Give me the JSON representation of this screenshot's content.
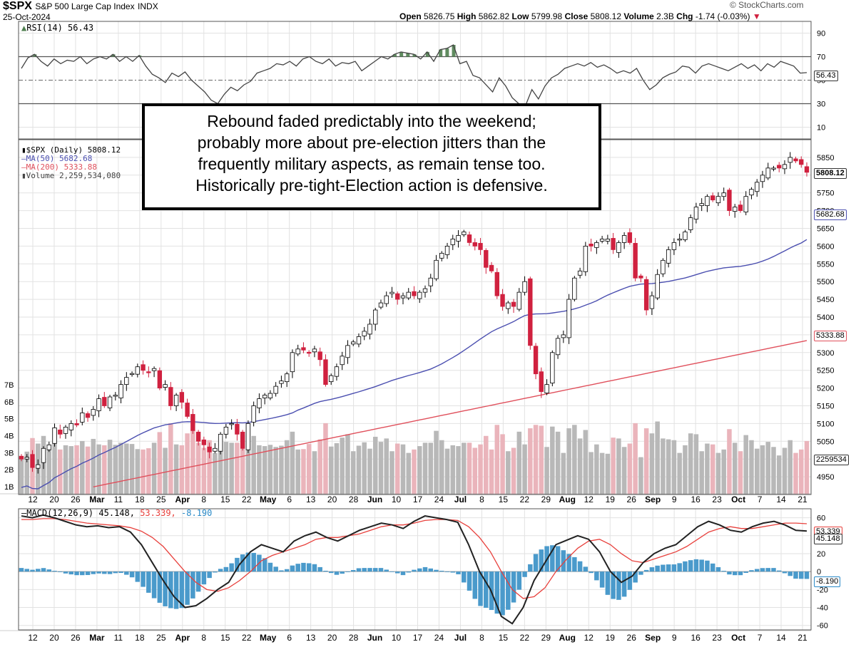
{
  "header": {
    "symbol": "$SPX",
    "name": "S&P 500 Large Cap Index",
    "exchange": "INDX",
    "date": "25-Oct-2024",
    "brand": "© StockCharts.com",
    "open_label": "Open",
    "open": "5826.75",
    "high_label": "High",
    "high": "5862.82",
    "low_label": "Low",
    "low": "5799.98",
    "close_label": "Close",
    "close": "5808.12",
    "volume_label": "Volume",
    "volume": "2.3B",
    "chg_label": "Chg",
    "chg": "-1.74 (-0.03%)"
  },
  "annotation": {
    "lines": [
      "Rebound faded predictably into the weekend;",
      "probably more about pre-election jitters than the",
      "frequently military aspects, as remain tense too.",
      "Historically pre-tight-Election action is defensive."
    ]
  },
  "legend": {
    "rsi": "RSI(14) 56.43",
    "price": "$SPX (Daily) 5808.12",
    "ma50": "MA(50) 5682.68",
    "ma200": "MA(200) 5333.88",
    "volume": "Volume 2,259,534,080",
    "macd_prefix": "MACD(12,26,9)",
    "macd_v1": "45.148,",
    "macd_v2": "53.339,",
    "macd_v3": "-8.190"
  },
  "last_values": {
    "rsi": "56.43",
    "price": "5808.12",
    "ma50": "5682.68",
    "ma200": "5333.88",
    "volume": "2259534",
    "macd": "45.148",
    "signal": "53.339",
    "hist": "-8.190"
  },
  "colors": {
    "up": "#ffffff",
    "down": "#d0213f",
    "ma50": "#4b4fb0",
    "ma200": "#e0505c",
    "vol_up": "#b8b8b8",
    "vol_down": "#eab4bb",
    "macd_hist": "#4a9acb",
    "rsi_fill": "#4f7f4f",
    "macd_line": "#222222",
    "signal_line": "#e8403c"
  },
  "chart_data": [
    {
      "type": "line",
      "title": "RSI(14) 56.43",
      "y_ticks": [
        90,
        70,
        50,
        30,
        10
      ],
      "ylim": [
        0,
        100
      ],
      "series": [
        {
          "name": "RSI(14)",
          "values": [
            60,
            69,
            72,
            66,
            62,
            68,
            64,
            67,
            66,
            70,
            64,
            68,
            70,
            68,
            72,
            66,
            70,
            66,
            71,
            62,
            55,
            52,
            48,
            56,
            53,
            57,
            50,
            45,
            40,
            33,
            30,
            38,
            44,
            41,
            46,
            49,
            56,
            58,
            60,
            64,
            63,
            66,
            62,
            68,
            70,
            66,
            64,
            68,
            62,
            65,
            64,
            66,
            58,
            62,
            66,
            70,
            68,
            72,
            74,
            73,
            72,
            68,
            74,
            66,
            76,
            77,
            80,
            64,
            66,
            54,
            52,
            46,
            40,
            52,
            45,
            35,
            30,
            28,
            42,
            34,
            45,
            52,
            55,
            60,
            62,
            64,
            62,
            65,
            61,
            63,
            60,
            56,
            58,
            56,
            60,
            50,
            42,
            46,
            52,
            55,
            57,
            62,
            61,
            56,
            62,
            64,
            62,
            60,
            58,
            61,
            64,
            60,
            63,
            58,
            64,
            61,
            66,
            64,
            62,
            56,
            56.43
          ]
        }
      ]
    },
    {
      "type": "candlestick",
      "title": "$SPX (Daily) 5808.12",
      "y_ticks": [
        5850,
        5800,
        5750,
        5700,
        5650,
        5600,
        5550,
        5500,
        5450,
        5400,
        5350,
        5300,
        5250,
        5200,
        5150,
        5100,
        5050,
        5000,
        4950
      ],
      "ylim": [
        4900,
        5900
      ],
      "x_tick_labels": [
        "12",
        "20",
        "26",
        "Mar",
        "11",
        "18",
        "25",
        "Apr",
        "8",
        "15",
        "22",
        "May",
        "6",
        "13",
        "20",
        "28",
        "Jun",
        "10",
        "17",
        "24",
        "Jul",
        "8",
        "15",
        "22",
        "29",
        "Aug",
        "12",
        "19",
        "26",
        "Sep",
        "9",
        "16",
        "23",
        "Oct",
        "7",
        "14",
        "21"
      ],
      "close": [
        5000,
        5005,
        4976,
        4984,
        5030,
        5040,
        5088,
        5070,
        5090,
        5100,
        5096,
        5130,
        5117,
        5140,
        5170,
        5150,
        5175,
        5180,
        5210,
        5230,
        5241,
        5260,
        5250,
        5245,
        5255,
        5200,
        5210,
        5150,
        5180,
        5160,
        5120,
        5080,
        5050,
        5040,
        5020,
        5030,
        5070,
        5090,
        5100,
        5070,
        5030,
        5100,
        5150,
        5170,
        5180,
        5185,
        5205,
        5220,
        5240,
        5300,
        5310,
        5307,
        5300,
        5310,
        5280,
        5210,
        5235,
        5260,
        5290,
        5320,
        5330,
        5345,
        5360,
        5380,
        5420,
        5440,
        5460,
        5470,
        5450,
        5460,
        5470,
        5460,
        5470,
        5480,
        5510,
        5560,
        5580,
        5600,
        5620,
        5630,
        5640,
        5610,
        5600,
        5590,
        5540,
        5530,
        5460,
        5430,
        5440,
        5430,
        5470,
        5500,
        5320,
        5240,
        5190,
        5210,
        5300,
        5340,
        5350,
        5450,
        5510,
        5530,
        5600,
        5600,
        5610,
        5620,
        5620,
        5590,
        5610,
        5630,
        5610,
        5510,
        5510,
        5420,
        5460,
        5520,
        5560,
        5590,
        5610,
        5620,
        5640,
        5680,
        5710,
        5720,
        5740,
        5730,
        5740,
        5750,
        5700,
        5710,
        5700,
        5740,
        5760,
        5780,
        5800,
        5820,
        5820,
        5820,
        5830,
        5850,
        5840,
        5830,
        5808
      ]
    },
    {
      "type": "bar",
      "title": "Volume 2,259,534,080",
      "y_ticks": [
        "7B",
        "6B",
        "5B",
        "4B",
        "3B",
        "2B",
        "1B"
      ]
    },
    {
      "type": "line",
      "title": "MACD(12,26,9) 45.148, 53.339, -8.190",
      "y_ticks": [
        60,
        40,
        20,
        0,
        -20,
        -40,
        -60
      ],
      "ylim": [
        -65,
        70
      ],
      "series": [
        {
          "name": "MACD(12,26,9)",
          "values": [
            62,
            60,
            63,
            60,
            56,
            52,
            50,
            51,
            49,
            50,
            44,
            30,
            10,
            -10,
            -28,
            -40,
            -38,
            -30,
            -20,
            -12,
            8,
            22,
            30,
            26,
            22,
            34,
            40,
            44,
            38,
            34,
            40,
            46,
            50,
            54,
            52,
            48,
            56,
            62,
            60,
            58,
            55,
            30,
            0,
            -20,
            -50,
            -58,
            -40,
            -10,
            10,
            30,
            35,
            40,
            36,
            22,
            0,
            -12,
            -5,
            10,
            20,
            26,
            30,
            40,
            50,
            56,
            52,
            46,
            44,
            50,
            54,
            56,
            52,
            46,
            45.148
          ]
        },
        {
          "name": "signal",
          "values": [
            58,
            58,
            59,
            59,
            58,
            56,
            54,
            53,
            52,
            51,
            49,
            45,
            38,
            28,
            14,
            0,
            -12,
            -20,
            -22,
            -18,
            -10,
            0,
            12,
            18,
            22,
            26,
            30,
            36,
            38,
            38,
            40,
            42,
            46,
            50,
            52,
            52,
            54,
            57,
            58,
            58,
            57,
            50,
            38,
            22,
            0,
            -20,
            -30,
            -28,
            -18,
            0,
            14,
            26,
            34,
            36,
            30,
            20,
            12,
            10,
            14,
            18,
            22,
            28,
            36,
            44,
            48,
            50,
            48,
            48,
            50,
            52,
            54,
            54,
            53.339
          ]
        },
        {
          "name": "hist",
          "values": [
            4,
            2,
            4,
            1,
            -2,
            -4,
            -4,
            -2,
            -3,
            -1,
            -5,
            -15,
            -28,
            -38,
            -42,
            -40,
            -26,
            -10,
            2,
            6,
            18,
            22,
            18,
            8,
            0,
            8,
            10,
            8,
            0,
            -4,
            0,
            4,
            4,
            4,
            0,
            -4,
            2,
            5,
            2,
            0,
            -2,
            -20,
            -38,
            -42,
            -50,
            -38,
            -10,
            18,
            28,
            30,
            21,
            14,
            2,
            -14,
            -30,
            -32,
            -17,
            0,
            6,
            8,
            8,
            12,
            14,
            12,
            4,
            -4,
            -4,
            2,
            4,
            4,
            -2,
            -8,
            -8.19
          ]
        }
      ]
    }
  ]
}
